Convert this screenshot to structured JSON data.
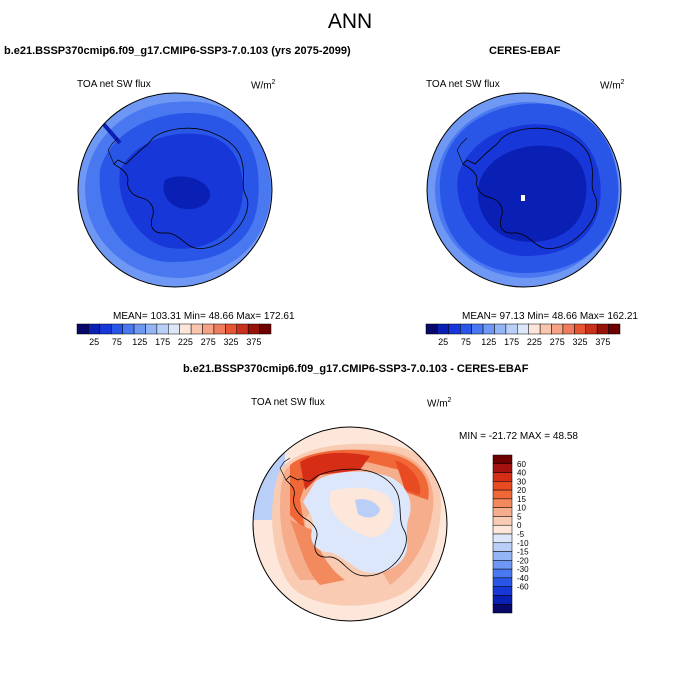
{
  "figure_title": "ANN",
  "panels": [
    {
      "title": "b.e21.BSSP370cmip6.f09_g17.CMIP6-SSP3-7.0.103 (yrs 2075-2099)",
      "variable": "TOA net SW flux",
      "units_base": "W/m",
      "units_exp": "2",
      "stats_text": "MEAN= 103.31  Min=  48.66  Max= 172.61"
    },
    {
      "title": "CERES-EBAF",
      "variable": "TOA net SW flux",
      "units_base": "W/m",
      "units_exp": "2",
      "stats_text": "MEAN=  97.13  Min=  48.66  Max= 162.21"
    },
    {
      "title": "b.e21.BSSP370cmip6.f09_g17.CMIP6-SSP3-7.0.103 - CERES-EBAF",
      "variable": "TOA net SW flux",
      "units_base": "W/m",
      "units_exp": "2",
      "stats_text": "MIN = -21.72 MAX =  48.58"
    }
  ],
  "colorbar_abs": {
    "colors": [
      "#08086b",
      "#0a1fb4",
      "#1737d8",
      "#2a56e8",
      "#4a78f0",
      "#6e98f4",
      "#93b5f6",
      "#b9cff8",
      "#dde7fb",
      "#fde6d9",
      "#f9c6ad",
      "#f5a384",
      "#ef7c5c",
      "#e55433",
      "#c9301b",
      "#971209",
      "#6e0000"
    ],
    "ticks": [
      "25",
      "75",
      "125",
      "175",
      "225",
      "275",
      "325",
      "375"
    ]
  },
  "colorbar_diff": {
    "colors": [
      "#6e0000",
      "#a51210",
      "#d52d16",
      "#e84a22",
      "#f06838",
      "#f38a5e",
      "#f6ad8c",
      "#f9cbb2",
      "#fce7da",
      "#dde7fb",
      "#b9cff8",
      "#93b5f6",
      "#6e98f4",
      "#4a78f0",
      "#2a56e8",
      "#1737d8",
      "#0a1fb4",
      "#08086b"
    ],
    "ticks": [
      "60",
      "40",
      "30",
      "20",
      "15",
      "10",
      "5",
      "0",
      "-5",
      "-10",
      "-15",
      "-20",
      "-30",
      "-40",
      "-60"
    ]
  }
}
